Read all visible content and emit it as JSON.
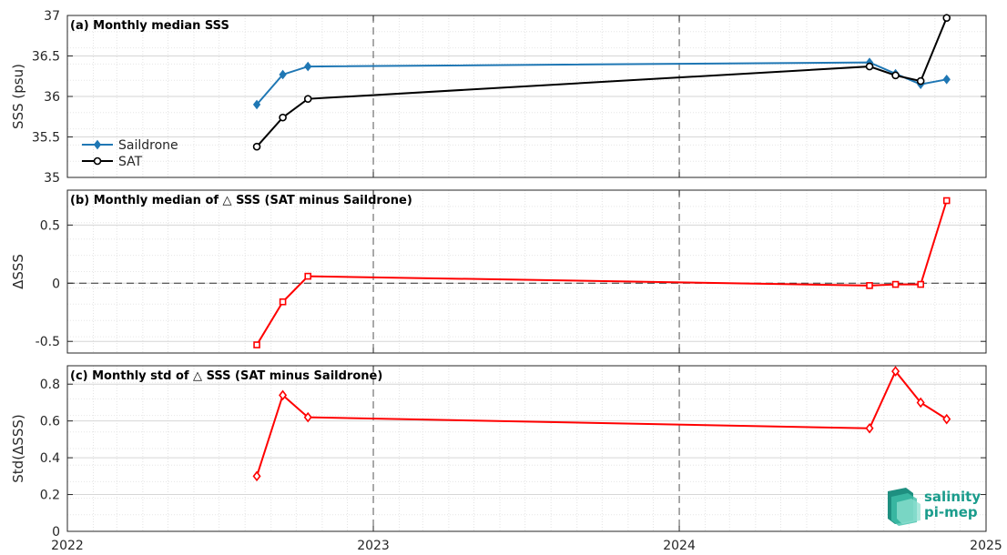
{
  "chart_data": [
    {
      "type": "line",
      "title": "(a) Monthly median SSS",
      "ylabel": "SSS (psu)",
      "xlim": [
        "2022-01-01",
        "2025-01-01"
      ],
      "ylim": [
        35,
        37
      ],
      "yticks": [
        "35",
        "35.5",
        "36",
        "36.5",
        "37"
      ],
      "grid": true,
      "legend": "middle-left",
      "series": [
        {
          "name": "Saildrone",
          "color": "#1f77b4",
          "marker": "diamond-filled",
          "x": [
            "2022-08-15",
            "2022-09-15",
            "2022-10-15",
            "2024-08-15",
            "2024-09-15",
            "2024-10-15",
            "2024-11-15"
          ],
          "y": [
            35.9,
            36.27,
            36.37,
            36.42,
            36.28,
            36.15,
            36.21
          ]
        },
        {
          "name": "SAT",
          "color": "#000000",
          "marker": "circle-open",
          "x": [
            "2022-08-15",
            "2022-09-15",
            "2022-10-15",
            "2024-08-15",
            "2024-09-15",
            "2024-10-15",
            "2024-11-15"
          ],
          "y": [
            35.38,
            35.74,
            35.97,
            36.37,
            36.26,
            36.19,
            36.97
          ]
        }
      ]
    },
    {
      "type": "line",
      "title": "(b) Monthly median of △ SSS (SAT minus Saildrone)",
      "ylabel": "ΔSSS",
      "xlim": [
        "2022-01-01",
        "2025-01-01"
      ],
      "ylim": [
        -0.6,
        0.8
      ],
      "yticks": [
        "-0.5",
        "0",
        "0.5"
      ],
      "zero_line": true,
      "grid": true,
      "series": [
        {
          "color": "#ff0000",
          "marker": "square-open",
          "x": [
            "2022-08-15",
            "2022-09-15",
            "2022-10-15",
            "2024-08-15",
            "2024-09-15",
            "2024-10-15",
            "2024-11-15"
          ],
          "y": [
            -0.53,
            -0.16,
            0.06,
            -0.02,
            -0.01,
            -0.01,
            0.71
          ]
        }
      ]
    },
    {
      "type": "line",
      "title": "(c) Monthly std of △ SSS (SAT minus Saildrone)",
      "ylabel": "Std(ΔSSS)",
      "xlim": [
        "2022-01-01",
        "2025-01-01"
      ],
      "ylim": [
        0,
        0.9
      ],
      "yticks": [
        "0",
        "0.2",
        "0.4",
        "0.6",
        "0.8"
      ],
      "xticks": [
        "2022",
        "2023",
        "2024",
        "2025"
      ],
      "grid": true,
      "series": [
        {
          "color": "#ff0000",
          "marker": "diamond-open",
          "x": [
            "2022-08-15",
            "2022-09-15",
            "2022-10-15",
            "2024-08-15",
            "2024-09-15",
            "2024-10-15",
            "2024-11-15"
          ],
          "y": [
            0.3,
            0.74,
            0.62,
            0.56,
            0.87,
            0.7,
            0.61
          ]
        }
      ]
    }
  ],
  "logo": {
    "line1": "salinity",
    "line2": "pi-mep",
    "color": "#1a9c8c"
  }
}
